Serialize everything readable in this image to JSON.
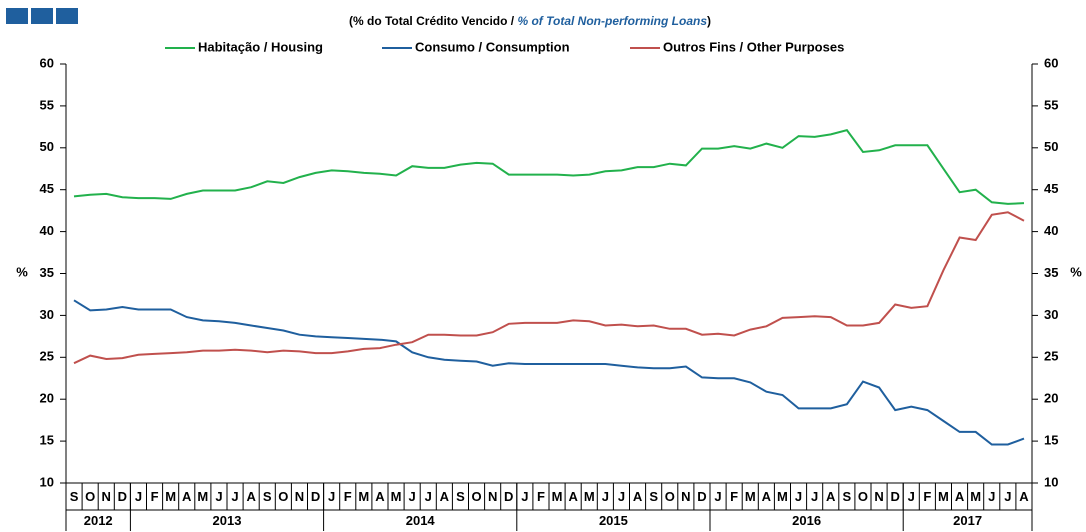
{
  "chart_data": {
    "type": "line",
    "subtitle": [
      "(% do Total Crédito Vencido / ",
      "% of Total Non-performing Loans",
      ")"
    ],
    "y_label": "%",
    "categories": [
      "S",
      "O",
      "N",
      "D",
      "J",
      "F",
      "M",
      "A",
      "M",
      "J",
      "J",
      "A",
      "S",
      "O",
      "N",
      "D",
      "J",
      "F",
      "M",
      "A",
      "M",
      "J",
      "J",
      "A",
      "S",
      "O",
      "N",
      "D",
      "J",
      "F",
      "M",
      "A",
      "M",
      "J",
      "J",
      "A",
      "S",
      "O",
      "N",
      "D",
      "J",
      "F",
      "M",
      "A",
      "M",
      "J",
      "J",
      "A",
      "S",
      "O",
      "N",
      "D",
      "J",
      "F",
      "M",
      "A",
      "M",
      "J",
      "J",
      "A"
    ],
    "years": [
      "2012",
      "2013",
      "2014",
      "2015",
      "2016",
      "2017"
    ],
    "ylim": [
      10,
      60
    ],
    "yticks": [
      10,
      15,
      20,
      25,
      30,
      35,
      40,
      45,
      50,
      55,
      60
    ],
    "y2lim": [
      10,
      60
    ],
    "y2ticks": [
      10,
      15,
      20,
      25,
      30,
      35,
      40,
      45,
      50,
      55,
      60
    ],
    "series": [
      {
        "name": "Habitação / Housing",
        "color": "#22b14c",
        "values": [
          44.2,
          44.4,
          44.5,
          44.1,
          44.0,
          44.0,
          43.9,
          44.5,
          44.9,
          44.9,
          44.9,
          45.3,
          46.0,
          45.8,
          46.5,
          47.0,
          47.3,
          47.2,
          47.0,
          46.9,
          46.7,
          47.8,
          47.6,
          47.6,
          48.0,
          48.2,
          48.1,
          46.8,
          46.8,
          46.8,
          46.8,
          46.7,
          46.8,
          47.2,
          47.3,
          47.7,
          47.7,
          48.1,
          47.9,
          49.9,
          49.9,
          50.2,
          49.9,
          50.5,
          50.0,
          51.4,
          51.3,
          51.6,
          52.1,
          49.5,
          49.7,
          50.3,
          50.3,
          50.3,
          47.5,
          44.7,
          45.0,
          43.5,
          43.3,
          43.4
        ]
      },
      {
        "name": "Consumo / Consumption",
        "color": "#1f5f9e",
        "values": [
          31.8,
          30.6,
          30.7,
          31.0,
          30.7,
          30.7,
          30.7,
          29.8,
          29.4,
          29.3,
          29.1,
          28.8,
          28.5,
          28.2,
          27.7,
          27.5,
          27.4,
          27.3,
          27.2,
          27.1,
          26.9,
          25.6,
          25.0,
          24.7,
          24.6,
          24.5,
          24.0,
          24.3,
          24.2,
          24.2,
          24.2,
          24.2,
          24.2,
          24.2,
          24.0,
          23.8,
          23.7,
          23.7,
          23.9,
          22.6,
          22.5,
          22.5,
          22.0,
          20.9,
          20.5,
          18.9,
          18.9,
          18.9,
          19.4,
          22.1,
          21.4,
          18.7,
          19.1,
          18.7,
          17.4,
          16.1,
          16.1,
          14.6,
          14.6,
          15.3
        ]
      },
      {
        "name": "Outros Fins / Other Purposes",
        "color": "#c0504d",
        "values": [
          24.3,
          25.2,
          24.8,
          24.9,
          25.3,
          25.4,
          25.5,
          25.6,
          25.8,
          25.8,
          25.9,
          25.8,
          25.6,
          25.8,
          25.7,
          25.5,
          25.5,
          25.7,
          26.0,
          26.1,
          26.5,
          26.8,
          27.7,
          27.7,
          27.6,
          27.6,
          28.0,
          29.0,
          29.1,
          29.1,
          29.1,
          29.4,
          29.3,
          28.8,
          28.9,
          28.7,
          28.8,
          28.4,
          28.4,
          27.7,
          27.8,
          27.6,
          28.3,
          28.7,
          29.7,
          29.8,
          29.9,
          29.8,
          28.8,
          28.8,
          29.1,
          31.3,
          30.9,
          31.1,
          35.4,
          39.3,
          39.0,
          42.0,
          42.3,
          41.3
        ]
      }
    ]
  }
}
